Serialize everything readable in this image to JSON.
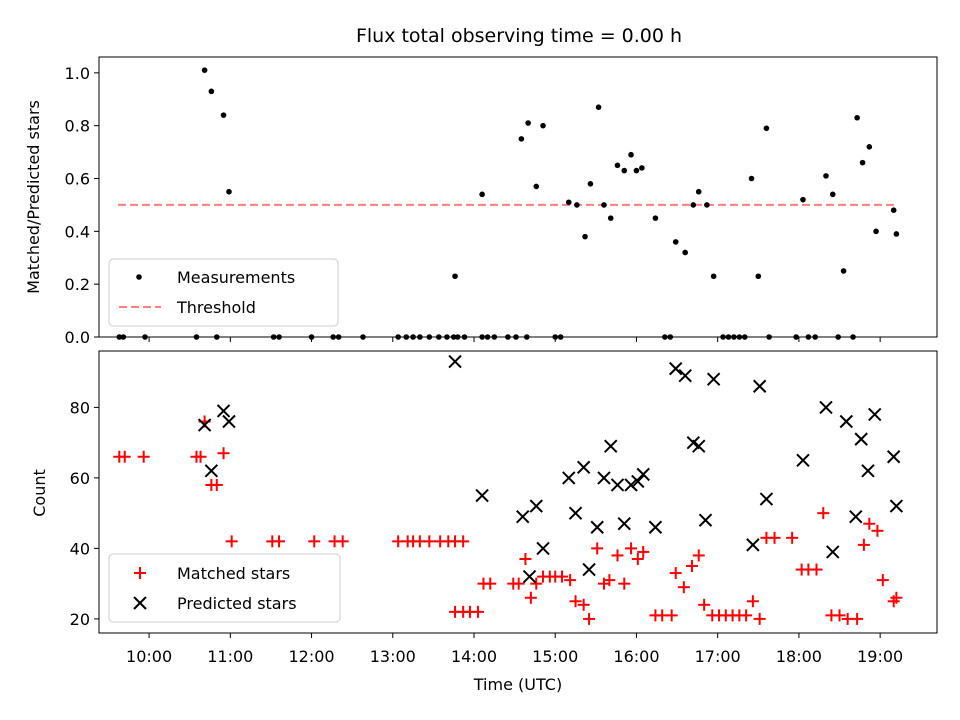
{
  "title": "Flux total observing time = 0.00 h",
  "chart_data": [
    {
      "type": "scatter",
      "ylabel": "Matched/Predicted stars",
      "xlabel": "",
      "xlim": [
        "09:23",
        "19:42"
      ],
      "ylim": [
        0,
        1.06
      ],
      "y_ticks": [
        0.0,
        0.2,
        0.4,
        0.6,
        0.8,
        1.0
      ],
      "legend_position": "lower-left",
      "series": [
        {
          "name": "Measurements",
          "color": "#000000",
          "marker": "dot",
          "points": [
            [
              "09:38",
              0.0
            ],
            [
              "09:41",
              0.0
            ],
            [
              "09:57",
              0.0
            ],
            [
              "10:35",
              0.0
            ],
            [
              "10:41",
              1.01
            ],
            [
              "10:46",
              0.93
            ],
            [
              "10:50",
              0.0
            ],
            [
              "10:55",
              0.84
            ],
            [
              "10:59",
              0.55
            ],
            [
              "11:32",
              0.0
            ],
            [
              "11:36",
              0.0
            ],
            [
              "12:00",
              0.0
            ],
            [
              "12:16",
              0.0
            ],
            [
              "12:20",
              0.0
            ],
            [
              "12:38",
              0.0
            ],
            [
              "13:04",
              0.0
            ],
            [
              "13:10",
              0.0
            ],
            [
              "13:15",
              0.0
            ],
            [
              "13:20",
              0.0
            ],
            [
              "13:27",
              0.0
            ],
            [
              "13:34",
              0.0
            ],
            [
              "13:40",
              0.0
            ],
            [
              "13:45",
              0.0
            ],
            [
              "13:48",
              0.0
            ],
            [
              "13:53",
              0.0
            ],
            [
              "13:46",
              0.23
            ],
            [
              "14:06",
              0.0
            ],
            [
              "14:10",
              0.0
            ],
            [
              "14:15",
              0.0
            ],
            [
              "14:25",
              0.0
            ],
            [
              "14:06",
              0.54
            ],
            [
              "14:31",
              0.0
            ],
            [
              "14:39",
              0.0
            ],
            [
              "14:35",
              0.75
            ],
            [
              "14:40",
              0.81
            ],
            [
              "14:46",
              0.57
            ],
            [
              "14:51",
              0.8
            ],
            [
              "15:00",
              0.0
            ],
            [
              "15:04",
              0.0
            ],
            [
              "15:10",
              0.51
            ],
            [
              "15:16",
              0.5
            ],
            [
              "15:22",
              0.38
            ],
            [
              "15:26",
              0.58
            ],
            [
              "15:32",
              0.87
            ],
            [
              "15:36",
              0.5
            ],
            [
              "15:41",
              0.45
            ],
            [
              "15:46",
              0.65
            ],
            [
              "15:51",
              0.63
            ],
            [
              "15:56",
              0.69
            ],
            [
              "16:00",
              0.63
            ],
            [
              "16:04",
              0.64
            ],
            [
              "16:14",
              0.45
            ],
            [
              "16:21",
              0.0
            ],
            [
              "16:25",
              0.0
            ],
            [
              "16:29",
              0.36
            ],
            [
              "16:36",
              0.32
            ],
            [
              "16:42",
              0.5
            ],
            [
              "16:46",
              0.55
            ],
            [
              "16:52",
              0.5
            ],
            [
              "16:57",
              0.23
            ],
            [
              "17:04",
              0.0
            ],
            [
              "17:08",
              0.0
            ],
            [
              "17:12",
              0.0
            ],
            [
              "17:16",
              0.0
            ],
            [
              "17:20",
              0.0
            ],
            [
              "17:25",
              0.6
            ],
            [
              "17:30",
              0.23
            ],
            [
              "17:36",
              0.79
            ],
            [
              "17:38",
              0.0
            ],
            [
              "17:58",
              0.0
            ],
            [
              "18:03",
              0.52
            ],
            [
              "18:07",
              0.0
            ],
            [
              "18:12",
              0.0
            ],
            [
              "18:20",
              0.61
            ],
            [
              "18:25",
              0.54
            ],
            [
              "18:29",
              0.0
            ],
            [
              "18:33",
              0.25
            ],
            [
              "18:40",
              0.0
            ],
            [
              "18:43",
              0.83
            ],
            [
              "18:47",
              0.66
            ],
            [
              "18:52",
              0.72
            ],
            [
              "18:57",
              0.4
            ],
            [
              "19:10",
              0.48
            ],
            [
              "19:12",
              0.39
            ]
          ]
        },
        {
          "name": "Threshold",
          "color": "#ff7f7f",
          "style": "dashed",
          "x": [
            "09:37",
            "19:12"
          ],
          "y": [
            0.5,
            0.5
          ]
        }
      ]
    },
    {
      "type": "scatter",
      "ylabel": "Count",
      "xlabel": "Time (UTC)",
      "xlim": [
        "09:23",
        "19:42"
      ],
      "ylim": [
        16,
        96
      ],
      "y_ticks": [
        20,
        40,
        60,
        80
      ],
      "x_ticks": [
        "10:00",
        "11:00",
        "12:00",
        "13:00",
        "14:00",
        "15:00",
        "16:00",
        "17:00",
        "18:00",
        "19:00"
      ],
      "legend_position": "lower-left",
      "series": [
        {
          "name": "Matched stars",
          "color": "#ff0000",
          "marker": "plus",
          "points": [
            [
              "09:38",
              66
            ],
            [
              "09:42",
              66
            ],
            [
              "09:56",
              66
            ],
            [
              "10:35",
              66
            ],
            [
              "10:38",
              66
            ],
            [
              "10:41",
              76
            ],
            [
              "10:46",
              58
            ],
            [
              "10:50",
              58
            ],
            [
              "10:55",
              67
            ],
            [
              "11:01",
              42
            ],
            [
              "11:31",
              42
            ],
            [
              "11:36",
              42
            ],
            [
              "12:02",
              42
            ],
            [
              "12:17",
              42
            ],
            [
              "12:23",
              42
            ],
            [
              "13:04",
              42
            ],
            [
              "13:11",
              42
            ],
            [
              "13:15",
              42
            ],
            [
              "13:20",
              42
            ],
            [
              "13:27",
              42
            ],
            [
              "13:35",
              42
            ],
            [
              "13:41",
              42
            ],
            [
              "13:46",
              42
            ],
            [
              "13:52",
              42
            ],
            [
              "13:46",
              22
            ],
            [
              "13:52",
              22
            ],
            [
              "13:57",
              22
            ],
            [
              "14:03",
              22
            ],
            [
              "14:07",
              30
            ],
            [
              "14:12",
              30
            ],
            [
              "14:29",
              30
            ],
            [
              "14:33",
              30
            ],
            [
              "14:38",
              37
            ],
            [
              "14:42",
              26
            ],
            [
              "14:46",
              30
            ],
            [
              "14:51",
              32
            ],
            [
              "14:56",
              32
            ],
            [
              "15:00",
              32
            ],
            [
              "15:05",
              32
            ],
            [
              "15:11",
              31
            ],
            [
              "15:15",
              25
            ],
            [
              "15:21",
              24
            ],
            [
              "15:25",
              20
            ],
            [
              "15:31",
              40
            ],
            [
              "15:36",
              30
            ],
            [
              "15:40",
              31
            ],
            [
              "15:46",
              38
            ],
            [
              "15:51",
              30
            ],
            [
              "15:56",
              40
            ],
            [
              "16:01",
              37
            ],
            [
              "16:05",
              39
            ],
            [
              "16:14",
              21
            ],
            [
              "16:19",
              21
            ],
            [
              "16:26",
              21
            ],
            [
              "16:29",
              33
            ],
            [
              "16:35",
              29
            ],
            [
              "16:41",
              35
            ],
            [
              "16:46",
              38
            ],
            [
              "16:50",
              24
            ],
            [
              "16:56",
              21
            ],
            [
              "17:01",
              21
            ],
            [
              "17:06",
              21
            ],
            [
              "17:11",
              21
            ],
            [
              "17:16",
              21
            ],
            [
              "17:21",
              21
            ],
            [
              "17:26",
              25
            ],
            [
              "17:31",
              20
            ],
            [
              "17:36",
              43
            ],
            [
              "17:42",
              43
            ],
            [
              "17:55",
              43
            ],
            [
              "18:02",
              34
            ],
            [
              "18:07",
              34
            ],
            [
              "18:13",
              34
            ],
            [
              "18:18",
              50
            ],
            [
              "18:24",
              21
            ],
            [
              "18:30",
              21
            ],
            [
              "18:36",
              20
            ],
            [
              "18:43",
              20
            ],
            [
              "18:48",
              41
            ],
            [
              "18:52",
              47
            ],
            [
              "18:58",
              45
            ],
            [
              "19:02",
              31
            ],
            [
              "19:10",
              25
            ],
            [
              "19:12",
              26
            ]
          ]
        },
        {
          "name": "Predicted stars",
          "color": "#000000",
          "marker": "x",
          "points": [
            [
              "10:41",
              75
            ],
            [
              "10:46",
              62
            ],
            [
              "10:55",
              79
            ],
            [
              "10:59",
              76
            ],
            [
              "13:46",
              93
            ],
            [
              "14:06",
              55
            ],
            [
              "14:36",
              49
            ],
            [
              "14:41",
              32
            ],
            [
              "14:46",
              52
            ],
            [
              "14:51",
              40
            ],
            [
              "15:10",
              60
            ],
            [
              "15:15",
              50
            ],
            [
              "15:21",
              63
            ],
            [
              "15:25",
              34
            ],
            [
              "15:31",
              46
            ],
            [
              "15:36",
              60
            ],
            [
              "15:41",
              69
            ],
            [
              "15:46",
              58
            ],
            [
              "15:51",
              47
            ],
            [
              "15:56",
              58
            ],
            [
              "16:01",
              59
            ],
            [
              "16:05",
              61
            ],
            [
              "16:14",
              46
            ],
            [
              "16:29",
              91
            ],
            [
              "16:36",
              89
            ],
            [
              "16:42",
              70
            ],
            [
              "16:46",
              69
            ],
            [
              "16:51",
              48
            ],
            [
              "16:57",
              88
            ],
            [
              "17:26",
              41
            ],
            [
              "17:31",
              86
            ],
            [
              "17:36",
              54
            ],
            [
              "18:03",
              65
            ],
            [
              "18:20",
              80
            ],
            [
              "18:25",
              39
            ],
            [
              "18:35",
              76
            ],
            [
              "18:42",
              49
            ],
            [
              "18:46",
              71
            ],
            [
              "18:51",
              62
            ],
            [
              "18:56",
              78
            ],
            [
              "19:10",
              66
            ],
            [
              "19:12",
              52
            ]
          ]
        }
      ]
    }
  ]
}
